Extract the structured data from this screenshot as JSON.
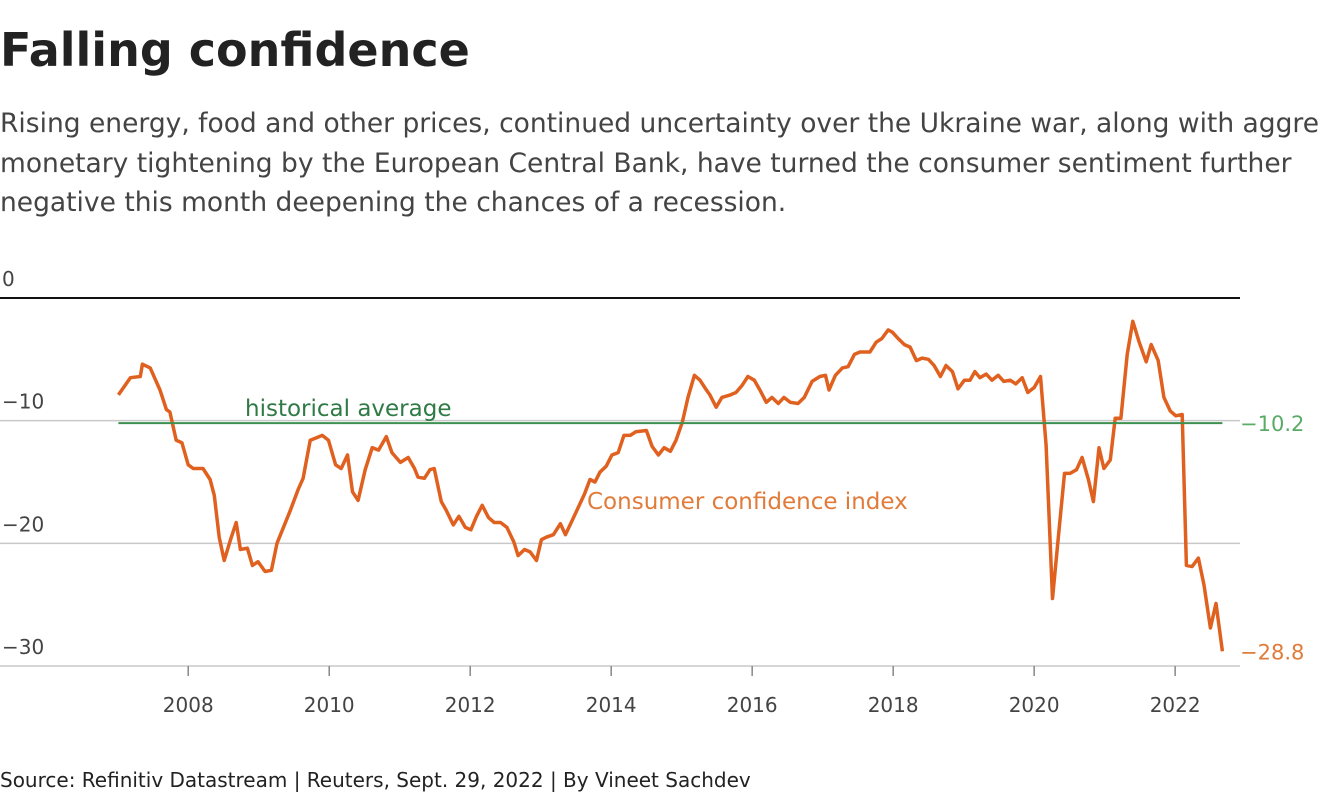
{
  "chart_data": {
    "type": "line",
    "title": "Falling confidence",
    "subtitle": [
      "Rising energy, food and other prices, continued uncertainty over the Ukraine war, along with aggressive",
      "monetary tightening by the European Central Bank, have turned the consumer sentiment further",
      "negative this month deepening the chances of a recession."
    ],
    "source": "Source: Refinitiv Datastream | Reuters, Sept. 29, 2022 | By Vineet Sachdev",
    "xlim": [
      2005.33,
      2022.92
    ],
    "xticks": [
      2008,
      2010,
      2012,
      2014,
      2016,
      2018,
      2020,
      2022
    ],
    "ylim": [
      -30,
      0
    ],
    "yticks": [
      0,
      {
        "value": -10,
        "label": "−10"
      },
      {
        "value": -20,
        "label": "−20"
      },
      {
        "value": -30,
        "label": "−30"
      }
    ],
    "grid": true,
    "series": [
      {
        "name": "Consumer confidence index",
        "color": "#e0611f",
        "label_color": "#e07b39",
        "last_label": "−28.8",
        "x": [
          2007.01,
          2007.18,
          2007.32,
          2007.35,
          2007.46,
          2007.6,
          2007.69,
          2007.74,
          2007.83,
          2007.91,
          2008,
          2008.07,
          2008.21,
          2008.31,
          2008.37,
          2008.44,
          2008.51,
          2008.6,
          2008.68,
          2008.74,
          2008.84,
          2008.91,
          2008.99,
          2009.09,
          2009.18,
          2009.26,
          2009.45,
          2009.56,
          2009.63,
          2009.73,
          2009.82,
          2009.9,
          2009.99,
          2010.09,
          2010.17,
          2010.26,
          2010.33,
          2010.41,
          2010.51,
          2010.61,
          2010.7,
          2010.81,
          2010.89,
          2011.01,
          2011.12,
          2011.21,
          2011.26,
          2011.35,
          2011.43,
          2011.49,
          2011.59,
          2011.66,
          2011.76,
          2011.84,
          2011.93,
          2012.01,
          2012.09,
          2012.17,
          2012.26,
          2012.34,
          2012.43,
          2012.52,
          2012.62,
          2012.68,
          2012.77,
          2012.85,
          2012.94,
          2013.01,
          2013.08,
          2013.18,
          2013.28,
          2013.35,
          2013.45,
          2013.53,
          2013.62,
          2013.7,
          2013.77,
          2013.84,
          2013.93,
          2014.01,
          2014.1,
          2014.18,
          2014.27,
          2014.35,
          2014.5,
          2014.58,
          2014.67,
          2014.75,
          2014.84,
          2014.92,
          2015.01,
          2015.09,
          2015.18,
          2015.26,
          2015.35,
          2015.4,
          2015.49,
          2015.57,
          2015.69,
          2015.77,
          2015.86,
          2015.94,
          2016.03,
          2016.11,
          2016.2,
          2016.28,
          2016.37,
          2016.45,
          2016.54,
          2016.65,
          2016.74,
          2016.85,
          2016.96,
          2017.04,
          2017.09,
          2017.18,
          2017.28,
          2017.36,
          2017.45,
          2017.53,
          2017.67,
          2017.76,
          2017.84,
          2017.93,
          2017.99,
          2018.07,
          2018.16,
          2018.24,
          2018.33,
          2018.41,
          2018.5,
          2018.58,
          2018.67,
          2018.75,
          2018.84,
          2018.92,
          2019.01,
          2019.09,
          2019.16,
          2019.23,
          2019.32,
          2019.4,
          2019.49,
          2019.57,
          2019.66,
          2019.74,
          2019.83,
          2019.91,
          2020,
          2020.09,
          2020.17,
          2020.26,
          2020.34,
          2020.43,
          2020.51,
          2020.6,
          2020.68,
          2020.77,
          2020.84,
          2020.92,
          2020.99,
          2021.08,
          2021.15,
          2021.23,
          2021.32,
          2021.4,
          2021.49,
          2021.59,
          2021.66,
          2021.76,
          2021.84,
          2021.93,
          2022.01,
          2022.1,
          2022.16,
          2022.24,
          2022.33,
          2022.41,
          2022.5,
          2022.58,
          2022.67
        ],
        "values": [
          -7.9,
          -6.5,
          -6.4,
          -5.4,
          -5.7,
          -7.5,
          -9.1,
          -9.3,
          -11.6,
          -11.8,
          -13.6,
          -13.9,
          -13.9,
          -14.8,
          -16.1,
          -19.5,
          -21.4,
          -19.7,
          -18.3,
          -20.5,
          -20.4,
          -21.8,
          -21.5,
          -22.3,
          -22.2,
          -20,
          -17.3,
          -15.6,
          -14.7,
          -11.6,
          -11.4,
          -11.2,
          -11.6,
          -13.6,
          -13.9,
          -12.8,
          -15.8,
          -16.5,
          -14,
          -12.2,
          -12.4,
          -11.3,
          -12.6,
          -13.4,
          -13,
          -13.9,
          -14.6,
          -14.7,
          -14,
          -13.9,
          -16.6,
          -17.3,
          -18.5,
          -17.8,
          -18.7,
          -18.9,
          -17.8,
          -16.9,
          -17.9,
          -18.3,
          -18.3,
          -18.7,
          -19.9,
          -21,
          -20.5,
          -20.7,
          -21.4,
          -19.7,
          -19.5,
          -19.3,
          -18.4,
          -19.3,
          -18.1,
          -17.1,
          -16,
          -14.8,
          -15,
          -14.2,
          -13.7,
          -12.8,
          -12.6,
          -11.2,
          -11.2,
          -10.9,
          -10.8,
          -12.1,
          -12.8,
          -12.2,
          -12.5,
          -11.6,
          -10.1,
          -8.1,
          -6.3,
          -6.7,
          -7.5,
          -7.9,
          -8.9,
          -8.1,
          -7.9,
          -7.7,
          -7.1,
          -6.4,
          -6.7,
          -7.5,
          -8.5,
          -8.1,
          -8.6,
          -8.1,
          -8.5,
          -8.6,
          -8.1,
          -6.8,
          -6.4,
          -6.3,
          -7.5,
          -6.3,
          -5.7,
          -5.6,
          -4.6,
          -4.4,
          -4.4,
          -3.6,
          -3.3,
          -2.6,
          -2.8,
          -3.3,
          -3.8,
          -4,
          -5.1,
          -4.9,
          -5,
          -5.5,
          -6.4,
          -5.5,
          -6,
          -7.4,
          -6.7,
          -6.7,
          -6,
          -6.5,
          -6.2,
          -6.7,
          -6.3,
          -6.8,
          -6.7,
          -7,
          -6.5,
          -7.7,
          -7.3,
          -6.4,
          -12,
          -24.5,
          -19.7,
          -14.3,
          -14.3,
          -14,
          -13,
          -14.8,
          -16.6,
          -12.2,
          -13.9,
          -13.2,
          -9.8,
          -9.8,
          -4.6,
          -1.9,
          -3.6,
          -5.2,
          -3.8,
          -5.1,
          -8.1,
          -9.2,
          -9.6,
          -9.5,
          -21.8,
          -21.9,
          -21.2,
          -23.4,
          -26.9,
          -24.9,
          -28.8
        ]
      },
      {
        "name": "historical average",
        "color": "#3d9150",
        "label_color": "#5aab68",
        "name_color": "#2f7a45",
        "last_label": "−10.2",
        "x": [
          2007.01,
          2022.67
        ],
        "values": [
          -10.2,
          -10.2
        ]
      }
    ]
  }
}
